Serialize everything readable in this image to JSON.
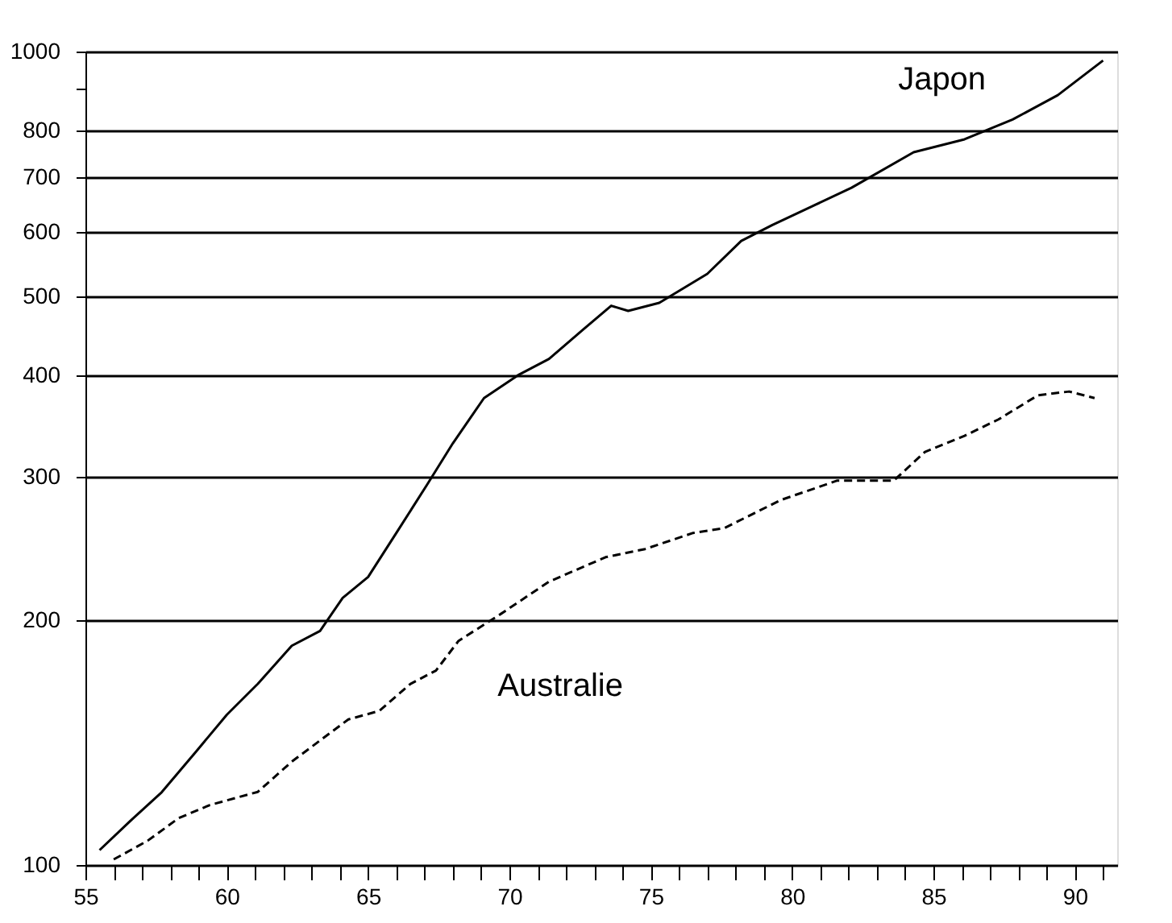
{
  "chart_data": {
    "type": "line",
    "log": "y",
    "xlim": [
      55,
      91.5
    ],
    "ylim": [
      100,
      1000
    ],
    "xticks": [
      55,
      {
        "value": 56,
        "label": null
      },
      {
        "value": 57,
        "label": null
      },
      {
        "value": 58,
        "label": null
      },
      {
        "value": 59,
        "label": null
      },
      60,
      {
        "value": 61,
        "label": null
      },
      {
        "value": 62,
        "label": null
      },
      {
        "value": 63,
        "label": null
      },
      {
        "value": 64,
        "label": null
      },
      65,
      {
        "value": 66,
        "label": null
      },
      {
        "value": 67,
        "label": null
      },
      {
        "value": 68,
        "label": null
      },
      {
        "value": 69,
        "label": null
      },
      70,
      {
        "value": 71,
        "label": null
      },
      {
        "value": 72,
        "label": null
      },
      {
        "value": 73,
        "label": null
      },
      {
        "value": 74,
        "label": null
      },
      75,
      {
        "value": 76,
        "label": null
      },
      {
        "value": 77,
        "label": null
      },
      {
        "value": 78,
        "label": null
      },
      {
        "value": 79,
        "label": null
      },
      80,
      {
        "value": 81,
        "label": null
      },
      {
        "value": 82,
        "label": null
      },
      {
        "value": 83,
        "label": null
      },
      {
        "value": 84,
        "label": null
      },
      85,
      {
        "value": 86,
        "label": null
      },
      {
        "value": 87,
        "label": null
      },
      {
        "value": 88,
        "label": null
      },
      {
        "value": 89,
        "label": null
      },
      90,
      {
        "value": 91,
        "label": null
      }
    ],
    "yticks": [
      100,
      200,
      300,
      400,
      500,
      600,
      700,
      800,
      {
        "value": 900,
        "label": null
      },
      1000
    ],
    "grid": "y",
    "marker": "none",
    "series": [
      {
        "name": "Japon",
        "color": "#000000",
        "line_style": "solid",
        "x": [
          55.5,
          56.6,
          57.7,
          58.9,
          60.0,
          61.1,
          62.3,
          63.3,
          64.1,
          65.0,
          66.0,
          67.1,
          68.0,
          69.1,
          70.3,
          71.4,
          72.6,
          73.6,
          74.2,
          75.3,
          77.0,
          78.2,
          79.3,
          82.1,
          84.3,
          86.1,
          87.8,
          89.4,
          91.0
        ],
        "values": [
          104.3,
          113.4,
          122.9,
          137.7,
          153,
          167,
          186,
          194,
          213,
          226,
          256,
          294,
          330,
          375,
          400,
          419,
          455,
          487,
          480,
          491,
          533,
          585,
          612,
          680,
          752,
          780,
          825,
          884,
          975
        ]
      },
      {
        "name": "Australie",
        "color": "#000000",
        "line_style": "dashed",
        "x": [
          56.0,
          57.2,
          58.3,
          59.4,
          61.1,
          62.3,
          64.3,
          65.4,
          66.5,
          67.4,
          68.2,
          69.7,
          71.4,
          73.4,
          74.8,
          76.5,
          77.6,
          79.6,
          81.6,
          83.6,
          84.7,
          86.1,
          87.3,
          88.7,
          89.8,
          90.7
        ],
        "values": [
          101.6,
          107.1,
          114.2,
          118.5,
          123,
          134,
          151,
          154.7,
          167,
          173.4,
          188.6,
          203.6,
          223,
          239,
          244.6,
          256,
          259.5,
          281,
          296.9,
          296.9,
          322,
          337,
          353,
          378,
          382,
          375
        ]
      }
    ]
  }
}
